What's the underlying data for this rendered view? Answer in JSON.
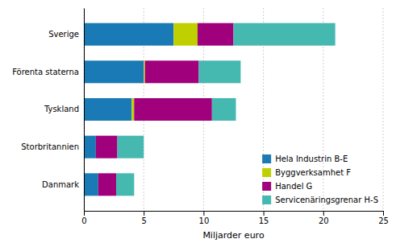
{
  "chart_data": {
    "type": "bar",
    "orientation": "horizontal",
    "stacked": true,
    "categories": [
      "Sverige",
      "Förenta staterna",
      "Tyskland",
      "Storbritannien",
      "Danmark"
    ],
    "series": [
      {
        "name": "Hela Industrin B-E",
        "color": "#1a7ab5",
        "values": [
          7.5,
          5.0,
          4.0,
          1.0,
          1.2
        ]
      },
      {
        "name": "Byggverksamhet F",
        "color": "#bfcf00",
        "values": [
          2.0,
          0.1,
          0.2,
          0.0,
          0.0
        ]
      },
      {
        "name": "Handel G",
        "color": "#a0007c",
        "values": [
          3.0,
          4.5,
          6.5,
          1.8,
          1.5
        ]
      },
      {
        "name": "Servicenäringsgrenar H-S",
        "color": "#45b8b0",
        "values": [
          8.5,
          3.5,
          2.0,
          2.2,
          1.5
        ]
      }
    ],
    "xlabel": "Miljarder euro",
    "xlim": [
      0,
      25
    ],
    "xticks": [
      0,
      5,
      10,
      15,
      20,
      25
    ],
    "grid": true,
    "legend": "lower right"
  }
}
